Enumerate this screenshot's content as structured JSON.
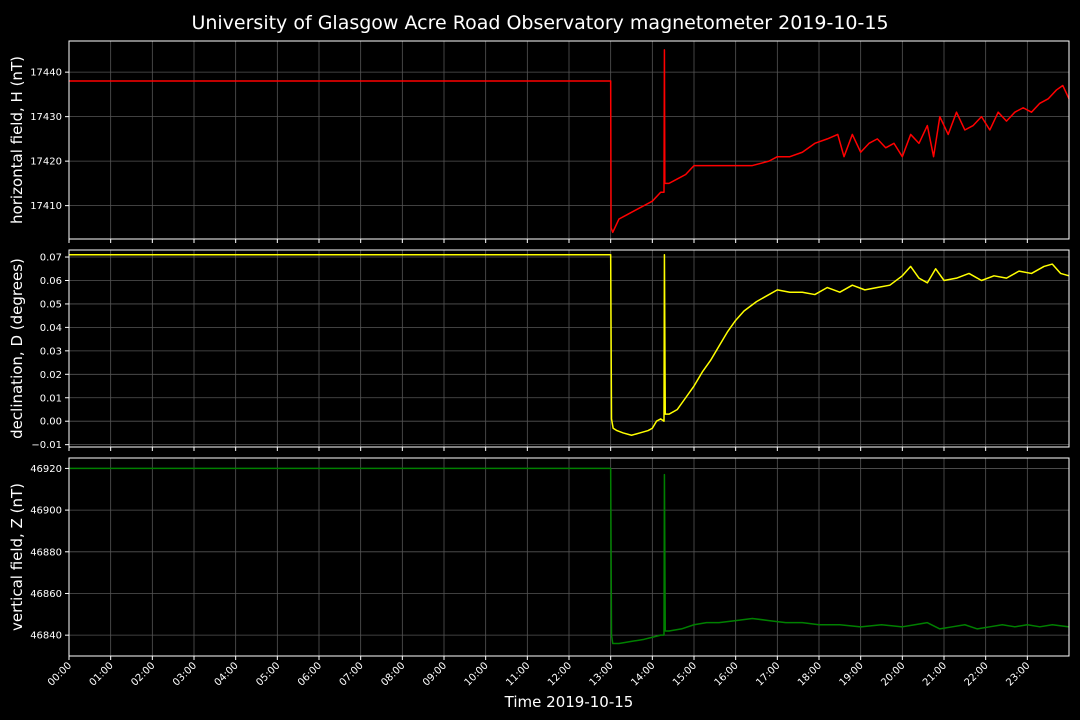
{
  "title": "University of Glasgow Acre Road Observatory magnetometer 2019-10-15",
  "xlabel": "Time 2019-10-15",
  "x_ticks": [
    "00:00",
    "01:00",
    "02:00",
    "03:00",
    "04:00",
    "05:00",
    "06:00",
    "07:00",
    "08:00",
    "09:00",
    "10:00",
    "11:00",
    "12:00",
    "13:00",
    "14:00",
    "15:00",
    "16:00",
    "17:00",
    "18:00",
    "19:00",
    "20:00",
    "21:00",
    "22:00",
    "23:00"
  ],
  "chart_data": [
    {
      "type": "line",
      "ylabel": "horizontal field, H (nT)",
      "color": "#ff0000",
      "ylim": [
        17402.5,
        17447.0
      ],
      "xlim_hours": [
        0,
        24
      ],
      "y_ticks": [
        17410,
        17420,
        17430,
        17440
      ],
      "grid": true,
      "series": [
        {
          "x_hours": [
            0,
            13.0,
            13.01,
            13.05,
            13.2,
            13.4,
            13.6,
            13.8,
            14.0,
            14.2,
            14.28,
            14.29,
            14.3,
            14.4,
            14.6,
            14.8,
            15.0,
            15.3,
            15.6,
            16.0,
            16.4,
            16.8,
            17.0,
            17.3,
            17.6,
            17.9,
            18.2,
            18.45,
            18.6,
            18.8,
            19.0,
            19.2,
            19.4,
            19.6,
            19.8,
            20.0,
            20.2,
            20.4,
            20.6,
            20.75,
            20.9,
            21.1,
            21.3,
            21.5,
            21.7,
            21.9,
            22.1,
            22.3,
            22.5,
            22.7,
            22.9,
            23.1,
            23.3,
            23.5,
            23.7,
            23.85,
            24.0
          ],
          "y": [
            17438,
            17438,
            17405,
            17404,
            17407,
            17408,
            17409,
            17410,
            17411,
            17413,
            17413,
            17445,
            17415,
            17415,
            17416,
            17417,
            17419,
            17419,
            17419,
            17419,
            17419,
            17420,
            17421,
            17421,
            17422,
            17424,
            17425,
            17426,
            17421,
            17426,
            17422,
            17424,
            17425,
            17423,
            17424,
            17421,
            17426,
            17424,
            17428,
            17421,
            17430,
            17426,
            17431,
            17427,
            17428,
            17430,
            17427,
            17431,
            17429,
            17431,
            17432,
            17431,
            17433,
            17434,
            17436,
            17437,
            17434
          ]
        }
      ]
    },
    {
      "type": "line",
      "ylabel": "declination, D (degrees)",
      "color": "#ffff00",
      "ylim": [
        -0.011,
        0.073
      ],
      "xlim_hours": [
        0,
        24
      ],
      "y_ticks": [
        -0.01,
        0.0,
        0.01,
        0.02,
        0.03,
        0.04,
        0.05,
        0.06,
        0.07
      ],
      "y_tick_labels": [
        "−0.01",
        "0.00",
        "0.01",
        "0.02",
        "0.03",
        "0.04",
        "0.05",
        "0.06",
        "0.07"
      ],
      "grid": true,
      "series": [
        {
          "x_hours": [
            0,
            13.0,
            13.02,
            13.06,
            13.15,
            13.3,
            13.5,
            13.7,
            13.9,
            14.0,
            14.1,
            14.2,
            14.28,
            14.29,
            14.31,
            14.4,
            14.6,
            14.8,
            15.0,
            15.2,
            15.4,
            15.6,
            15.8,
            16.0,
            16.2,
            16.5,
            16.8,
            17.0,
            17.3,
            17.6,
            17.9,
            18.2,
            18.5,
            18.8,
            19.1,
            19.4,
            19.7,
            20.0,
            20.2,
            20.4,
            20.6,
            20.8,
            21.0,
            21.3,
            21.6,
            21.9,
            22.2,
            22.5,
            22.8,
            23.1,
            23.4,
            23.6,
            23.8,
            24.0
          ],
          "y": [
            0.071,
            0.071,
            0.001,
            -0.003,
            -0.004,
            -0.005,
            -0.006,
            -0.005,
            -0.004,
            -0.003,
            0.0,
            0.001,
            0.0,
            0.071,
            0.003,
            0.003,
            0.005,
            0.01,
            0.015,
            0.021,
            0.026,
            0.032,
            0.038,
            0.043,
            0.047,
            0.051,
            0.054,
            0.056,
            0.055,
            0.055,
            0.054,
            0.057,
            0.055,
            0.058,
            0.056,
            0.057,
            0.058,
            0.062,
            0.066,
            0.061,
            0.059,
            0.065,
            0.06,
            0.061,
            0.063,
            0.06,
            0.062,
            0.061,
            0.064,
            0.063,
            0.066,
            0.067,
            0.063,
            0.062
          ]
        }
      ]
    },
    {
      "type": "line",
      "ylabel": "vertical field, Z (nT)",
      "color": "#008000",
      "ylim": [
        46830,
        46925
      ],
      "xlim_hours": [
        0,
        24
      ],
      "y_ticks": [
        46840,
        46860,
        46880,
        46900,
        46920
      ],
      "grid": true,
      "series": [
        {
          "x_hours": [
            0,
            13.0,
            13.02,
            13.05,
            13.2,
            13.5,
            13.8,
            14.0,
            14.2,
            14.28,
            14.29,
            14.31,
            14.4,
            14.7,
            15.0,
            15.3,
            15.6,
            16.0,
            16.4,
            16.8,
            17.2,
            17.6,
            18.0,
            18.5,
            19.0,
            19.5,
            20.0,
            20.3,
            20.6,
            20.9,
            21.2,
            21.5,
            21.8,
            22.1,
            22.4,
            22.7,
            23.0,
            23.3,
            23.6,
            24.0
          ],
          "y": [
            46920,
            46920,
            46840,
            46836,
            46836,
            46837,
            46838,
            46839,
            46840,
            46840,
            46917,
            46842,
            46842,
            46843,
            46845,
            46846,
            46846,
            46847,
            46848,
            46847,
            46846,
            46846,
            46845,
            46845,
            46844,
            46845,
            46844,
            46845,
            46846,
            46843,
            46844,
            46845,
            46843,
            46844,
            46845,
            46844,
            46845,
            46844,
            46845,
            46844
          ]
        }
      ]
    }
  ]
}
